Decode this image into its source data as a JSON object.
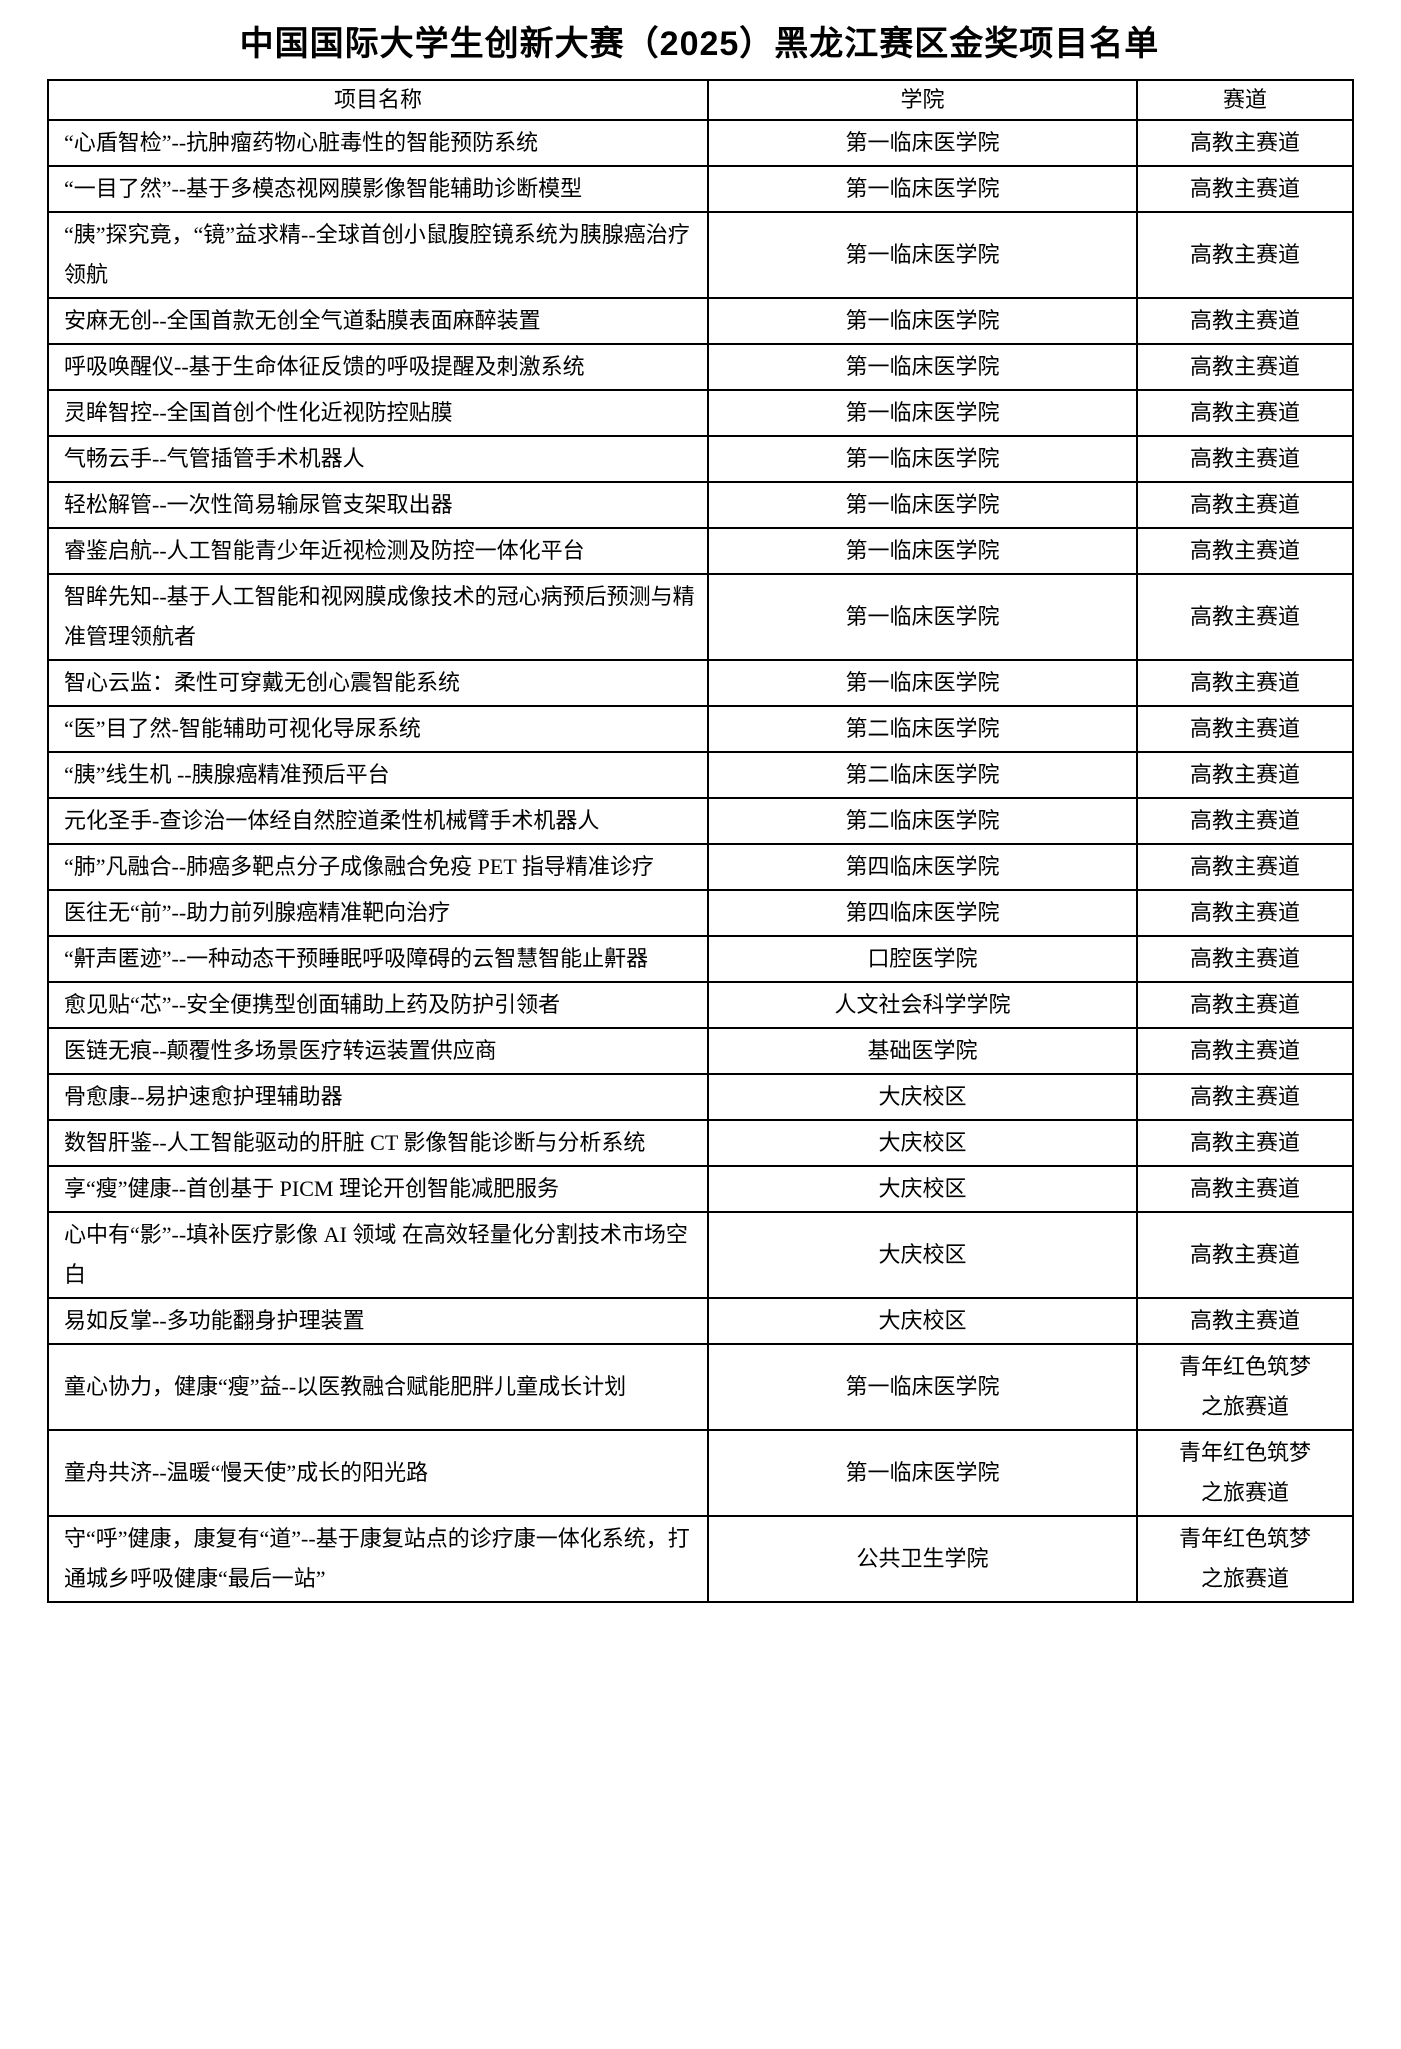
{
  "title": "中国国际大学生创新大赛（2025）黑龙江赛区金奖项目名单",
  "table": {
    "headers": [
      "项目名称",
      "学院",
      "赛道"
    ],
    "rows": [
      {
        "project": "“心盾智检”--抗肿瘤药物心脏毒性的智能预防系统",
        "college": "第一临床医学院",
        "track": "高教主赛道"
      },
      {
        "project": "“一目了然”--基于多模态视网膜影像智能辅助诊断模型",
        "college": "第一临床医学院",
        "track": "高教主赛道"
      },
      {
        "project": "“胰”探究竟，“镜”益求精--全球首创小鼠腹腔镜系统为胰腺癌治疗领航",
        "college": "第一临床医学院",
        "track": "高教主赛道"
      },
      {
        "project": "安麻无创--全国首款无创全气道黏膜表面麻醉装置",
        "college": "第一临床医学院",
        "track": "高教主赛道"
      },
      {
        "project": "呼吸唤醒仪--基于生命体征反馈的呼吸提醒及刺激系统",
        "college": "第一临床医学院",
        "track": "高教主赛道"
      },
      {
        "project": "灵眸智控--全国首创个性化近视防控贴膜",
        "college": "第一临床医学院",
        "track": "高教主赛道"
      },
      {
        "project": "气畅云手--气管插管手术机器人",
        "college": "第一临床医学院",
        "track": "高教主赛道"
      },
      {
        "project": "轻松解管--一次性简易输尿管支架取出器",
        "college": "第一临床医学院",
        "track": "高教主赛道"
      },
      {
        "project": "睿鉴启航--人工智能青少年近视检测及防控一体化平台",
        "college": "第一临床医学院",
        "track": "高教主赛道"
      },
      {
        "project": "智眸先知--基于人工智能和视网膜成像技术的冠心病预后预测与精准管理领航者",
        "college": "第一临床医学院",
        "track": "高教主赛道"
      },
      {
        "project": "智心云监：柔性可穿戴无创心震智能系统",
        "college": "第一临床医学院",
        "track": "高教主赛道"
      },
      {
        "project": "“医”目了然-智能辅助可视化导尿系统",
        "college": "第二临床医学院",
        "track": "高教主赛道"
      },
      {
        "project": "“胰”线生机 --胰腺癌精准预后平台",
        "college": "第二临床医学院",
        "track": "高教主赛道"
      },
      {
        "project": "元化圣手-查诊治一体经自然腔道柔性机械臂手术机器人",
        "college": "第二临床医学院",
        "track": "高教主赛道"
      },
      {
        "project": "“肺”凡融合--肺癌多靶点分子成像融合免疫 PET 指导精准诊疗",
        "college": "第四临床医学院",
        "track": "高教主赛道"
      },
      {
        "project": "医往无“前”--助力前列腺癌精准靶向治疗",
        "college": "第四临床医学院",
        "track": "高教主赛道"
      },
      {
        "project": "“鼾声匿迹”--一种动态干预睡眠呼吸障碍的云智慧智能止鼾器",
        "college": "口腔医学院",
        "track": "高教主赛道"
      },
      {
        "project": "愈见贴“芯”--安全便携型创面辅助上药及防护引领者",
        "college": "人文社会科学学院",
        "track": "高教主赛道"
      },
      {
        "project": "医链无痕--颠覆性多场景医疗转运装置供应商",
        "college": "基础医学院",
        "track": "高教主赛道"
      },
      {
        "project": "骨愈康--易护速愈护理辅助器",
        "college": "大庆校区",
        "track": "高教主赛道"
      },
      {
        "project": "数智肝鉴--人工智能驱动的肝脏 CT 影像智能诊断与分析系统",
        "college": "大庆校区",
        "track": "高教主赛道"
      },
      {
        "project": "享“瘦”健康--首创基于 PICM 理论开创智能减肥服务",
        "college": "大庆校区",
        "track": "高教主赛道"
      },
      {
        "project": "心中有“影”--填补医疗影像 AI 领域 在高效轻量化分割技术市场空白",
        "college": "大庆校区",
        "track": "高教主赛道"
      },
      {
        "project": "易如反掌--多功能翻身护理装置",
        "college": "大庆校区",
        "track": "高教主赛道"
      },
      {
        "project": "童心协力，健康“瘦”益--以医教融合赋能肥胖儿童成长计划",
        "college": "第一临床医学院",
        "track": "青年红色筑梦\n之旅赛道"
      },
      {
        "project": "童舟共济--温暖“慢天使”成长的阳光路",
        "college": "第一临床医学院",
        "track": "青年红色筑梦\n之旅赛道"
      },
      {
        "project": "守“呼”健康，康复有“道”--基于康复站点的诊疗康一体化系统，打通城乡呼吸健康“最后一站”",
        "college": "公共卫生学院",
        "track": "青年红色筑梦\n之旅赛道"
      }
    ]
  }
}
